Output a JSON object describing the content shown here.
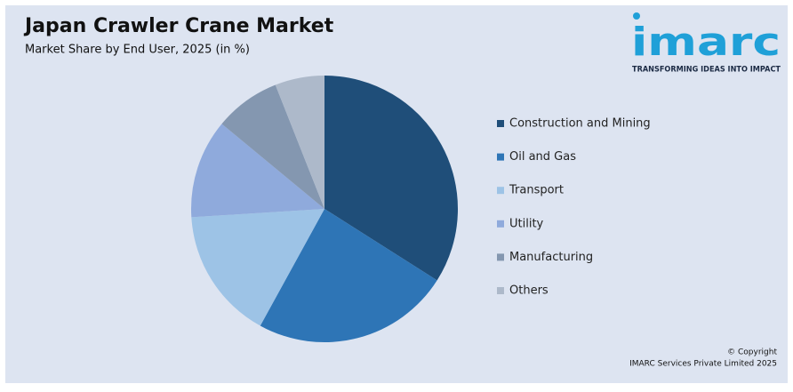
{
  "chart_data": {
    "type": "pie",
    "title": "Japan Crawler Crane Market",
    "subtitle": "Market Share by End User, 2025 (in %)",
    "categories": [
      "Construction and Mining",
      "Oil and Gas",
      "Transport",
      "Utility",
      "Manufacturing",
      "Others"
    ],
    "values": [
      34,
      24,
      16,
      12,
      8,
      6
    ],
    "colors": [
      "#1f4e79",
      "#2e75b6",
      "#9dc3e6",
      "#8faadc",
      "#8497b0",
      "#adb9ca"
    ],
    "legend": "right"
  },
  "logo": {
    "name": "imarc",
    "tagline": "TRANSFORMING IDEAS INTO IMPACT"
  },
  "copyright": [
    "© Copyright",
    "IMARC Services Private Limited 2025"
  ]
}
